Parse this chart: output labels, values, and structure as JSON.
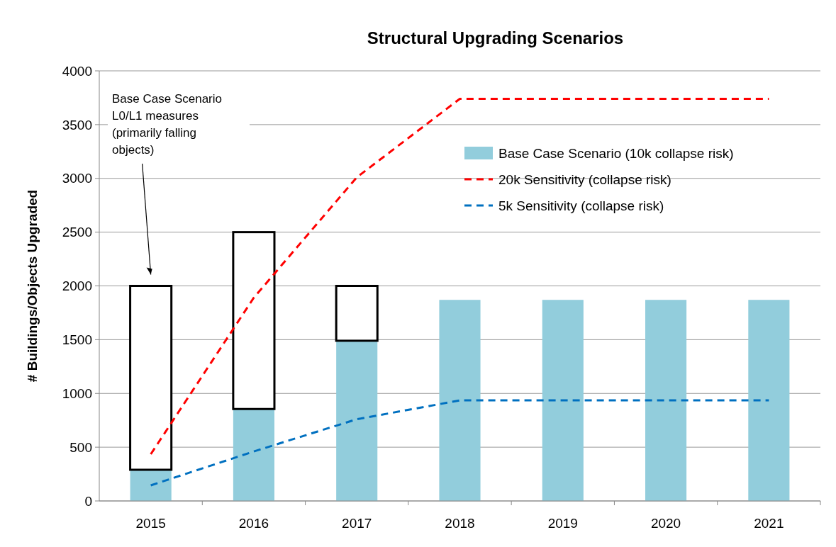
{
  "chart_data": {
    "type": "bar",
    "title": "Structural Upgrading Scenarios",
    "ylabel": "# Buildings/Objects Upgraded",
    "categories": [
      "2015",
      "2016",
      "2017",
      "2018",
      "2019",
      "2020",
      "2021"
    ],
    "stacked": true,
    "series": [
      {
        "name": "Base Case Scenario (10k collapse risk)",
        "color": "#92cddc",
        "values": [
          290,
          855,
          1490,
          1870,
          1870,
          1870,
          1870
        ]
      },
      {
        "color": "#ffffff",
        "values": [
          1710,
          1645,
          510,
          null,
          null,
          null,
          null
        ]
      },
      {
        "name": "20k Sensitivity (collapse risk)",
        "type": "line",
        "color": "#ff0000",
        "line_style": "dashed",
        "values": [
          435,
          1890,
          3010,
          3740,
          3740,
          3740,
          3740
        ]
      },
      {
        "name": "5k Sensitivity (collapse risk)",
        "type": "line",
        "color": "#0070c0",
        "line_style": "dashed",
        "values": [
          145,
          460,
          760,
          935,
          935,
          935,
          935
        ]
      }
    ],
    "ylim": [
      0,
      4000
    ],
    "yticks": [
      0,
      500,
      1000,
      1500,
      2000,
      2500,
      3000,
      3500,
      4000
    ],
    "grid": "y",
    "legend": "top right",
    "marker": "none",
    "annotations": [
      "Base Case Scenario L0/L1 measures (primarily falling objects)"
    ]
  }
}
